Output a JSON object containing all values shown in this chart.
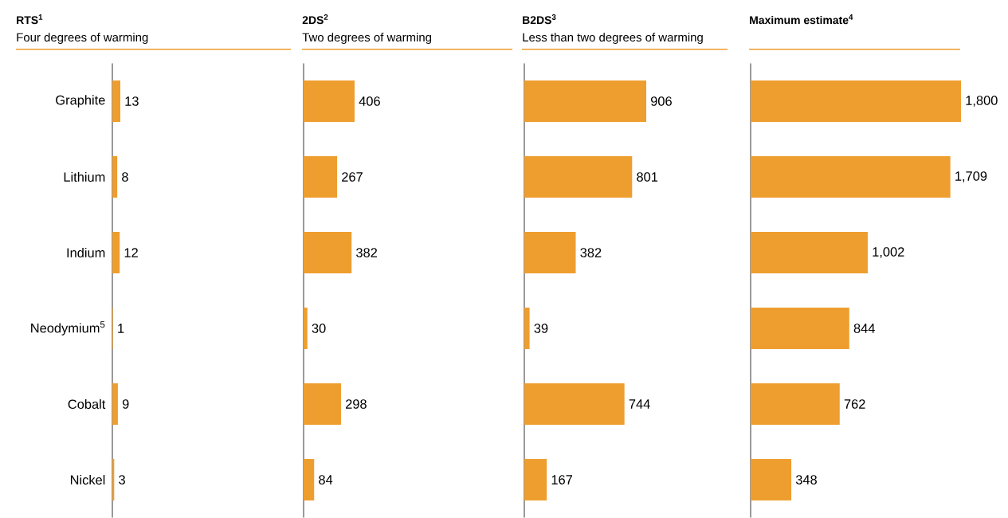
{
  "chart_data": [
    {
      "type": "bar",
      "orientation": "horizontal",
      "title": "RTS$^{1}$",
      "subtitle": "Four degrees of warming",
      "categories": [
        "Graphite",
        "Lithium",
        "Indium",
        "Neodymium$^{5}$",
        "Cobalt",
        "Nickel"
      ],
      "values": [
        13,
        8,
        12,
        1,
        9,
        3
      ],
      "value_labels": [
        "13",
        "8",
        "12",
        "1",
        "9",
        "3"
      ],
      "color": "#ee9e2f",
      "tick_labels": "y"
    },
    {
      "type": "bar",
      "orientation": "horizontal",
      "title": "2DS$^{2}$",
      "subtitle": "Two degrees of warming",
      "categories": [
        null,
        null,
        null,
        null,
        null,
        null
      ],
      "values": [
        406,
        267,
        382,
        30,
        298,
        84
      ],
      "value_labels": [
        "406",
        "267",
        "382",
        "30",
        "298",
        "84"
      ],
      "color": "#ee9e2f",
      "tick_labels": false
    },
    {
      "type": "bar",
      "orientation": "horizontal",
      "title": "B2DS$^{3}$",
      "subtitle": "Less than two degrees of warming",
      "categories": [
        null,
        null,
        null,
        null,
        null,
        null
      ],
      "values": [
        906,
        801,
        382,
        39,
        744,
        167
      ],
      "value_labels": [
        "906",
        "801",
        "382",
        "39",
        "744",
        "167"
      ],
      "color": "#ee9e2f",
      "tick_labels": false
    },
    {
      "type": "bar",
      "orientation": "horizontal",
      "title": "Maximum estimate$^{4}$",
      "categories": [
        null,
        null,
        null,
        null,
        null,
        null
      ],
      "values": [
        1800,
        1709,
        1002,
        844,
        762,
        348
      ],
      "value_labels": [
        "1,800",
        "1,709",
        "1,002",
        "844",
        "762",
        "348"
      ],
      "color": "#ee9e2f",
      "tick_labels": false
    }
  ]
}
